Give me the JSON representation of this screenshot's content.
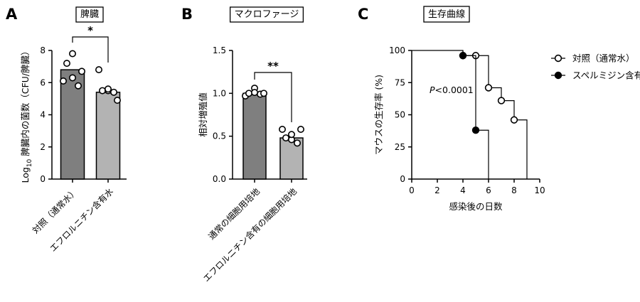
{
  "chart_data": [
    {
      "panel": "A",
      "type": "bar",
      "title": "脾臓",
      "ylabel": "Log10 脾臓内の菌数 (CFU/脾臓)",
      "ylabel_parts": {
        "pre": "Log",
        "sub": "10",
        "post": " 脾臓内の菌数（CFU/脾臓）"
      },
      "ylim": [
        0,
        8
      ],
      "yticks": [
        0,
        2,
        4,
        6,
        8
      ],
      "categories": [
        "対照（通常水）",
        "エフロルニチン含有水"
      ],
      "values": [
        6.8,
        5.4
      ],
      "bar_colors": [
        "#7f7f7f",
        "#b3b3b3"
      ],
      "points": [
        [
          6.1,
          7.2,
          7.8,
          5.8,
          6.7,
          6.3
        ],
        [
          6.8,
          5.5,
          5.5,
          5.4,
          4.9,
          5.6
        ]
      ],
      "significance": "*"
    },
    {
      "panel": "B",
      "type": "bar",
      "title": "マクロファージ",
      "ylabel": "相対増殖値",
      "ylim": [
        0,
        1.5
      ],
      "yticks": [
        "0.0",
        "0.5",
        "1.0",
        "1.5"
      ],
      "ytick_values": [
        0,
        0.5,
        1.0,
        1.5
      ],
      "categories": [
        "通常の細胞用培地",
        "エフロルニチン含有の細胞用培地"
      ],
      "values": [
        1.0,
        0.48
      ],
      "bar_colors": [
        "#7f7f7f",
        "#b3b3b3"
      ],
      "points": [
        [
          0.97,
          1.0,
          1.06,
          0.99,
          1.0,
          1.01
        ],
        [
          0.58,
          0.48,
          0.46,
          0.42,
          0.58,
          0.52
        ]
      ],
      "significance": "**"
    },
    {
      "panel": "C",
      "type": "line",
      "title": "生存曲線",
      "xlabel": "感染後の日数",
      "ylabel": "マウスの生存率 (%)",
      "xlim": [
        0,
        10
      ],
      "ylim": [
        0,
        100
      ],
      "xticks": [
        0,
        2,
        4,
        6,
        8,
        10
      ],
      "yticks": [
        0,
        25,
        50,
        75,
        100
      ],
      "annotation": {
        "italic": "P",
        "rest": "<0.0001"
      },
      "series": [
        {
          "name": "対照（通常水）",
          "marker": "open-circle",
          "steps": [
            [
              0,
              100
            ],
            [
              4,
              100
            ],
            [
              4,
              96
            ],
            [
              6,
              96
            ],
            [
              6,
              71
            ],
            [
              7,
              71
            ],
            [
              7,
              61
            ],
            [
              8,
              61
            ],
            [
              8,
              46
            ],
            [
              9,
              46
            ],
            [
              9,
              0
            ]
          ],
          "markers": [
            [
              4,
              96
            ],
            [
              5,
              96
            ],
            [
              6,
              71
            ],
            [
              7,
              61
            ],
            [
              8,
              46
            ]
          ]
        },
        {
          "name": "スペルミジン含有水",
          "marker": "filled-circle",
          "steps": [
            [
              4,
              100
            ],
            [
              4,
              96
            ],
            [
              5,
              96
            ],
            [
              5,
              38
            ],
            [
              6,
              38
            ],
            [
              6,
              0
            ]
          ],
          "markers": [
            [
              4,
              96
            ],
            [
              5,
              38
            ]
          ]
        }
      ]
    }
  ]
}
